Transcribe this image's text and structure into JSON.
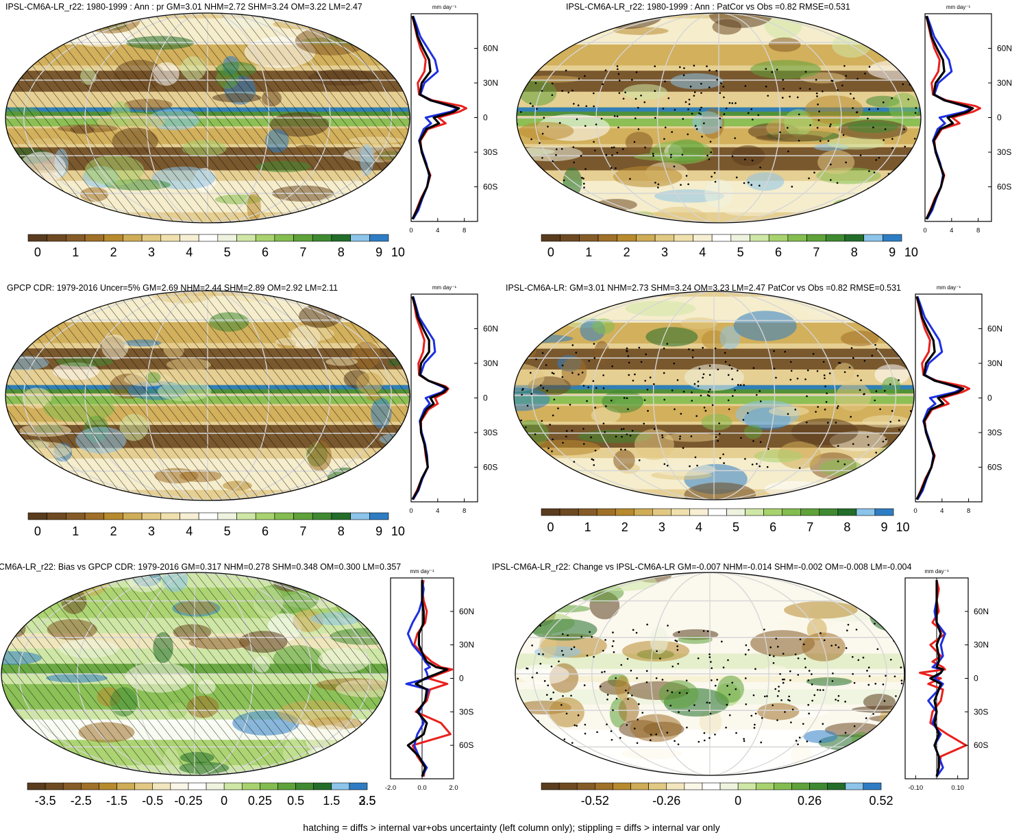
{
  "footnote": "hatching = diffs > internal var+obs uncertainty (left column only); stippling = diffs > internal var only",
  "colors": {
    "precip": [
      "#5a3c1e",
      "#6e4a23",
      "#855b27",
      "#a07028",
      "#b88a2e",
      "#cfac56",
      "#e2c983",
      "#efe0ad",
      "#f6efd3",
      "#ffffff",
      "#eef3df",
      "#cfe7a6",
      "#a8d26e",
      "#83bd4f",
      "#5fa23a",
      "#3f8a31",
      "#236d2a",
      "#8cc4ea",
      "#2e7dc4"
    ],
    "diff": [
      "#5a3c1e",
      "#6e4a23",
      "#855b27",
      "#a07028",
      "#b88a2e",
      "#cfac56",
      "#e2c983",
      "#f2e6bf",
      "#fbf7e8",
      "#ffffff",
      "#eef4df",
      "#cfe7a6",
      "#a8d26e",
      "#83bd4f",
      "#5fa23a",
      "#3f8a31",
      "#236d2a",
      "#8cc4ea",
      "#2e7dc4"
    ],
    "model_line": "#e8201d",
    "obs_line": "#1e2fe0",
    "mean_line": "#000000"
  },
  "panels": [
    {
      "id": "model-pr",
      "title": "IPSL-CM6A-LR_r22: 1980-1999 : Ann : pr GM=3.01 NHM=2.72 SHM=3.24 OM=3.22 LM=2.47",
      "units": "mm day⁻¹",
      "colorbar_labels": [
        "0",
        "1",
        "2",
        "3",
        "4",
        "5",
        "6",
        "7",
        "8",
        "9",
        "10"
      ],
      "zonal_ticks": [
        "0",
        "4",
        "8"
      ],
      "lat_labels": [
        "60N",
        "30N",
        "0",
        "30S",
        "60S"
      ],
      "overlay": "hatch",
      "chart_data": {
        "type": "line",
        "x_label": "mm day-1",
        "xlim": [
          0,
          10
        ],
        "ylim": [
          -90,
          90
        ],
        "lat": [
          -88,
          -80,
          -70,
          -60,
          -50,
          -40,
          -30,
          -20,
          -10,
          -5,
          0,
          5,
          8,
          10,
          15,
          20,
          30,
          40,
          50,
          60,
          70,
          80,
          88
        ],
        "series": [
          {
            "name": "model",
            "values": [
              0.2,
              0.8,
              1.5,
              2.4,
              2.9,
              2.2,
              1.6,
              1.4,
              2.5,
              5.2,
              4.1,
              7.2,
              8.3,
              7.6,
              3.2,
              1.2,
              1.0,
              2.0,
              2.2,
              1.4,
              0.9,
              0.5,
              0.2
            ]
          },
          {
            "name": "obs",
            "values": [
              0.3,
              1.1,
              1.7,
              2.4,
              2.7,
              2.3,
              1.7,
              1.2,
              1.9,
              3.0,
              2.2,
              5.9,
              7.0,
              5.8,
              3.0,
              1.4,
              2.0,
              4.0,
              3.6,
              2.5,
              1.4,
              0.8,
              0.3
            ]
          },
          {
            "name": "mean",
            "values": [
              0.2,
              0.9,
              1.6,
              2.4,
              2.8,
              2.2,
              1.6,
              1.3,
              2.3,
              4.2,
              3.4,
              6.4,
              7.2,
              6.1,
              2.9,
              1.3,
              1.6,
              2.9,
              2.7,
              1.8,
              1.0,
              0.6,
              0.2
            ]
          }
        ]
      }
    },
    {
      "id": "model-patcor",
      "title": "IPSL-CM6A-LR_r22: 1980-1999 : Ann : PatCor vs Obs =0.82 RMSE=0.531",
      "units": "mm day⁻¹",
      "colorbar_labels": [
        "0",
        "1",
        "2",
        "3",
        "4",
        "5",
        "6",
        "7",
        "8",
        "9",
        "10"
      ],
      "zonal_ticks": [
        "0",
        "4",
        "8"
      ],
      "lat_labels": [
        "60N",
        "30N",
        "0",
        "30S",
        "60S"
      ],
      "overlay": "stipple",
      "chart_data": {
        "type": "line",
        "x_label": "mm day-1",
        "xlim": [
          0,
          10
        ],
        "ylim": [
          -90,
          90
        ],
        "lat": [
          -88,
          -80,
          -70,
          -60,
          -50,
          -40,
          -30,
          -20,
          -10,
          -5,
          0,
          5,
          8,
          10,
          15,
          20,
          30,
          40,
          50,
          60,
          70,
          80,
          88
        ],
        "series": [
          {
            "name": "model",
            "values": [
              0.2,
              0.8,
              1.5,
              2.4,
              2.9,
              2.2,
              1.6,
              1.4,
              2.5,
              5.2,
              4.1,
              7.2,
              8.3,
              7.6,
              3.2,
              1.2,
              1.0,
              2.0,
              2.2,
              1.4,
              0.9,
              0.5,
              0.2
            ]
          },
          {
            "name": "obs",
            "values": [
              0.3,
              1.1,
              1.7,
              2.4,
              2.7,
              2.3,
              1.7,
              1.2,
              1.9,
              3.0,
              2.2,
              5.9,
              7.0,
              5.8,
              3.0,
              1.4,
              2.0,
              4.0,
              3.6,
              2.5,
              1.4,
              0.8,
              0.3
            ]
          },
          {
            "name": "mean",
            "values": [
              0.2,
              0.9,
              1.6,
              2.4,
              2.8,
              2.2,
              1.6,
              1.3,
              2.3,
              4.2,
              3.4,
              6.4,
              7.2,
              6.1,
              2.9,
              1.3,
              1.6,
              2.9,
              2.7,
              1.8,
              1.0,
              0.6,
              0.2
            ]
          }
        ]
      }
    },
    {
      "id": "obs-gpcp",
      "title": "GPCP CDR: 1979-2016 Uncer=5% GM=2.69 NHM=2.44 SHM=2.89 OM=2.92 LM=2.11",
      "units": "mm day⁻¹",
      "colorbar_labels": [
        "0",
        "1",
        "2",
        "3",
        "4",
        "5",
        "6",
        "7",
        "8",
        "9",
        "10"
      ],
      "zonal_ticks": [
        "0",
        "4",
        "8"
      ],
      "lat_labels": [
        "60N",
        "30N",
        "0",
        "30S",
        "60S"
      ],
      "overlay": "hatch",
      "chart_data": {
        "type": "line",
        "x_label": "mm day-1",
        "xlim": [
          0,
          10
        ],
        "ylim": [
          -90,
          90
        ],
        "lat": [
          -88,
          -80,
          -70,
          -60,
          -50,
          -40,
          -30,
          -20,
          -10,
          -5,
          0,
          5,
          8,
          10,
          15,
          20,
          30,
          40,
          50,
          60,
          70,
          80,
          88
        ],
        "series": [
          {
            "name": "model",
            "values": [
              0.2,
              0.9,
              1.6,
              2.5,
              2.2,
              2.0,
              1.5,
              1.5,
              2.6,
              4.0,
              3.6,
              5.2,
              5.6,
              5.2,
              2.6,
              1.2,
              1.1,
              1.8,
              2.0,
              1.4,
              0.8,
              0.5,
              0.2
            ]
          },
          {
            "name": "obs",
            "values": [
              0.3,
              1.1,
              1.7,
              2.5,
              2.4,
              2.1,
              1.6,
              1.3,
              2.0,
              2.8,
              2.2,
              4.6,
              5.2,
              4.6,
              2.6,
              1.4,
              2.0,
              3.6,
              3.4,
              2.3,
              1.2,
              0.7,
              0.3
            ]
          },
          {
            "name": "mean",
            "values": [
              0.2,
              1.0,
              1.6,
              2.5,
              2.3,
              2.0,
              1.5,
              1.4,
              2.3,
              3.4,
              2.9,
              4.9,
              5.4,
              4.9,
              2.6,
              1.3,
              1.5,
              2.7,
              2.7,
              1.8,
              1.0,
              0.6,
              0.2
            ]
          }
        ]
      }
    },
    {
      "id": "model-mean",
      "title": "IPSL-CM6A-LR: GM=3.01 NHM=2.73 SHM=3.24 OM=3.23 LM=2.47 PatCor vs Obs =0.82 RMSE=0.531",
      "units": "mm day⁻¹",
      "colorbar_labels": [
        "0",
        "1",
        "2",
        "3",
        "4",
        "5",
        "6",
        "7",
        "8",
        "9",
        "10"
      ],
      "zonal_ticks": [
        "0",
        "4",
        "8"
      ],
      "lat_labels": [
        "60N",
        "30N",
        "0",
        "30S",
        "60S"
      ],
      "overlay": "stipple",
      "chart_data": {
        "type": "line",
        "x_label": "mm day-1",
        "xlim": [
          0,
          10
        ],
        "ylim": [
          -90,
          90
        ],
        "lat": [
          -88,
          -80,
          -70,
          -60,
          -50,
          -40,
          -30,
          -20,
          -10,
          -5,
          0,
          5,
          8,
          10,
          15,
          20,
          30,
          40,
          50,
          60,
          70,
          80,
          88
        ],
        "series": [
          {
            "name": "model",
            "values": [
              0.2,
              0.8,
              1.5,
              2.4,
              2.9,
              2.2,
              1.6,
              1.4,
              2.5,
              5.0,
              4.0,
              7.0,
              8.1,
              7.4,
              3.2,
              1.2,
              1.0,
              2.0,
              2.2,
              1.4,
              0.9,
              0.5,
              0.2
            ]
          },
          {
            "name": "obs",
            "values": [
              0.3,
              1.1,
              1.7,
              2.4,
              2.7,
              2.3,
              1.7,
              1.2,
              1.9,
              3.0,
              2.2,
              5.9,
              7.0,
              5.8,
              3.0,
              1.4,
              2.0,
              4.0,
              3.6,
              2.5,
              1.4,
              0.8,
              0.3
            ]
          },
          {
            "name": "mean",
            "values": [
              0.2,
              0.9,
              1.6,
              2.4,
              2.8,
              2.2,
              1.6,
              1.3,
              2.3,
              4.2,
              3.4,
              6.4,
              7.2,
              6.1,
              2.9,
              1.3,
              1.6,
              2.9,
              2.7,
              1.8,
              1.0,
              0.6,
              0.2
            ]
          }
        ]
      }
    },
    {
      "id": "bias",
      "title": "CM6A-LR_r22: Bias vs GPCP CDR: 1979-2016 GM=0.317 NHM=0.278 SHM=0.348 OM=0.300 LM=0.357",
      "units": "mm day⁻¹",
      "colorbar_labels": [
        "-3.5",
        "-2.5",
        "-1.5",
        "-0.5",
        "-0.25",
        "0",
        "0.25",
        "0.5",
        "1.5",
        "2.5",
        "3.5"
      ],
      "zonal_ticks": [
        "-2.0",
        "0.0",
        "2.0"
      ],
      "lat_labels": [
        "60N",
        "30N",
        "0",
        "30S",
        "60S"
      ],
      "overlay": "hatch",
      "chart_data": {
        "type": "line",
        "x_label": "mm day-1",
        "xlim": [
          -2.0,
          2.0
        ],
        "ylim": [
          -90,
          90
        ],
        "lat": [
          -88,
          -80,
          -70,
          -60,
          -50,
          -40,
          -30,
          -20,
          -10,
          -5,
          0,
          5,
          8,
          10,
          15,
          20,
          30,
          40,
          50,
          60,
          70,
          80,
          88
        ],
        "series": [
          {
            "name": "model",
            "values": [
              0.1,
              0.2,
              -0.3,
              -0.6,
              1.8,
              1.2,
              -0.4,
              0.3,
              0.5,
              1.6,
              0.4,
              1.3,
              1.9,
              1.2,
              0.6,
              0.2,
              -0.5,
              -0.3,
              0.2,
              0.3,
              0.1,
              0.0,
              0.1
            ]
          },
          {
            "name": "obs",
            "values": [
              0.0,
              0.3,
              -0.2,
              -0.5,
              -0.3,
              0.1,
              -0.2,
              0.2,
              0.4,
              -1.0,
              0.4,
              0.3,
              0.2,
              0.5,
              0.2,
              0.0,
              -0.6,
              -0.9,
              -0.6,
              -0.2,
              0.0,
              0.1,
              0.0
            ]
          },
          {
            "name": "mean",
            "values": [
              0.0,
              0.2,
              -0.2,
              -0.9,
              0.1,
              0.3,
              -0.3,
              0.2,
              0.3,
              -0.4,
              0.2,
              1.1,
              1.6,
              0.9,
              0.3,
              0.1,
              -0.2,
              -0.2,
              0.1,
              0.1,
              0.0,
              0.0,
              0.0
            ]
          }
        ]
      }
    },
    {
      "id": "change",
      "title": "IPSL-CM6A-LR_r22: Change vs IPSL-CM6A-LR GM=-0.007 NHM=-0.014 SHM=-0.002 OM=-0.008 LM=-0.004",
      "units": "mm day⁻¹",
      "colorbar_labels": [
        "-0.52",
        "-0.26",
        "0",
        "0.26",
        "0.52"
      ],
      "zonal_ticks": [
        "-0.10",
        "0.10"
      ],
      "lat_labels": [
        "60N",
        "30N",
        "0",
        "30S",
        "60S"
      ],
      "overlay": "stipple",
      "chart_data": {
        "type": "line",
        "x_label": "mm day-1",
        "xlim": [
          -0.15,
          0.15
        ],
        "ylim": [
          -90,
          90
        ],
        "lat": [
          -88,
          -80,
          -70,
          -60,
          -50,
          -40,
          -30,
          -20,
          -10,
          -5,
          0,
          5,
          8,
          10,
          15,
          20,
          30,
          40,
          50,
          60,
          70,
          80,
          88
        ],
        "series": [
          {
            "name": "model",
            "values": [
              0.0,
              0.01,
              0.02,
              0.14,
              0.05,
              -0.03,
              -0.02,
              0.02,
              0.03,
              -0.04,
              0.02,
              -0.08,
              0.04,
              0.03,
              -0.02,
              0.02,
              -0.03,
              0.04,
              -0.02,
              0.01,
              0.0,
              0.01,
              0.0
            ]
          },
          {
            "name": "obs",
            "values": [
              0.0,
              0.03,
              0.01,
              -0.01,
              0.02,
              -0.02,
              0.0,
              -0.04,
              0.01,
              0.03,
              -0.01,
              0.02,
              0.03,
              -0.02,
              0.01,
              0.03,
              0.02,
              0.04,
              0.0,
              -0.01,
              0.0,
              0.0,
              0.0
            ]
          },
          {
            "name": "mean",
            "values": [
              0.0,
              0.01,
              0.01,
              -0.01,
              0.01,
              -0.01,
              0.0,
              -0.01,
              0.01,
              0.02,
              -0.03,
              0.02,
              0.03,
              0.0,
              0.01,
              0.01,
              0.0,
              0.02,
              0.0,
              0.0,
              0.0,
              0.0,
              0.0
            ]
          }
        ]
      }
    }
  ]
}
